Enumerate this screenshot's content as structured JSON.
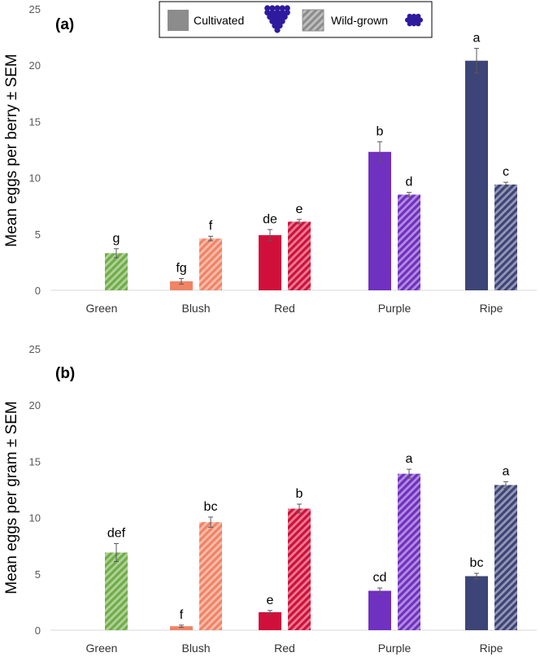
{
  "legend": {
    "cultivated_label": "Cultivated",
    "wild_label": "Wild-grown",
    "cultivated_icon": "large-berry-cluster-icon",
    "wild_icon": "small-berry-cluster-icon"
  },
  "colors": {
    "Green": "#70ad47",
    "Blush": "#f08466",
    "Red": "#d0103a",
    "Purple": "#7030c0",
    "Ripe": "#3d4477",
    "legend_swatch": "#8c8c8c",
    "berry_icon": "#2e1a9e"
  },
  "chart_data": [
    {
      "type": "bar",
      "panel_label": "(a)",
      "title": "",
      "xlabel": "",
      "ylabel": "Mean eggs per berry ± SEM",
      "ylim": [
        0,
        25
      ],
      "yticks": [
        0,
        5,
        10,
        15,
        20,
        25
      ],
      "grid": false,
      "legend_position": "top-center",
      "categories": [
        "Green",
        "Blush",
        "Red",
        "Purple",
        "Ripe"
      ],
      "series": [
        {
          "name": "Cultivated",
          "pattern": "solid",
          "values": [
            null,
            0.8,
            4.9,
            12.3,
            20.4
          ],
          "errors": [
            null,
            0.25,
            0.5,
            0.9,
            1.1
          ],
          "letters": [
            "",
            "fg",
            "de",
            "b",
            "a"
          ]
        },
        {
          "name": "Wild-grown",
          "pattern": "hatched",
          "values": [
            3.3,
            4.6,
            6.1,
            8.5,
            9.4
          ],
          "errors": [
            0.4,
            0.2,
            0.2,
            0.2,
            0.2
          ],
          "letters": [
            "g",
            "f",
            "e",
            "d",
            "c"
          ]
        }
      ]
    },
    {
      "type": "bar",
      "panel_label": "(b)",
      "title": "",
      "xlabel": "",
      "ylabel": "Mean eggs per gram ± SEM",
      "ylim": [
        0,
        25
      ],
      "yticks": [
        0,
        5,
        10,
        15,
        20,
        25
      ],
      "grid": false,
      "categories": [
        "Green",
        "Blush",
        "Red",
        "Purple",
        "Ripe"
      ],
      "series": [
        {
          "name": "Cultivated",
          "pattern": "solid",
          "values": [
            null,
            0.35,
            1.6,
            3.5,
            4.8
          ],
          "errors": [
            null,
            0.1,
            0.15,
            0.25,
            0.25
          ],
          "letters": [
            "",
            "f",
            "e",
            "cd",
            "bc"
          ]
        },
        {
          "name": "Wild-grown",
          "pattern": "hatched",
          "values": [
            6.9,
            9.6,
            10.8,
            13.9,
            12.9
          ],
          "errors": [
            0.8,
            0.45,
            0.4,
            0.4,
            0.3
          ],
          "letters": [
            "def",
            "bc",
            "b",
            "a",
            "a"
          ]
        }
      ]
    }
  ]
}
